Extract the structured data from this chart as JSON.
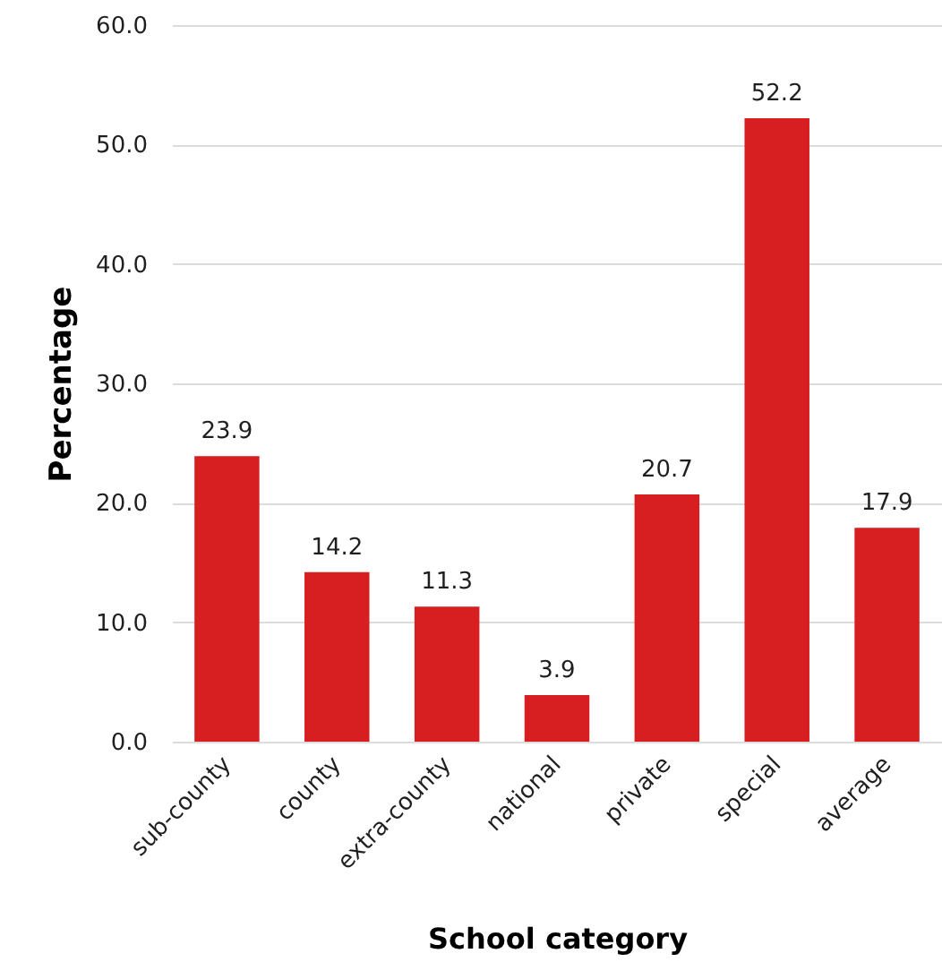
{
  "chart_data": {
    "type": "bar",
    "xlabel": "School category",
    "ylabel": "Percentage",
    "categories": [
      "sub-county",
      "county",
      "extra-county",
      "national",
      "private",
      "special",
      "average"
    ],
    "values": [
      23.9,
      14.2,
      11.3,
      3.9,
      20.7,
      52.2,
      17.9
    ],
    "color": "#d71f22",
    "ylim": [
      0,
      60
    ],
    "yticks": [
      {
        "value": 0,
        "label": "0.0"
      },
      {
        "value": 10,
        "label": "10.0"
      },
      {
        "value": 20,
        "label": "20.0"
      },
      {
        "value": 30,
        "label": "30.0"
      },
      {
        "value": 40,
        "label": "40.0"
      },
      {
        "value": 50,
        "label": "50.0"
      },
      {
        "value": 60,
        "label": "60.0"
      }
    ],
    "grid": true,
    "data_labels": true
  }
}
